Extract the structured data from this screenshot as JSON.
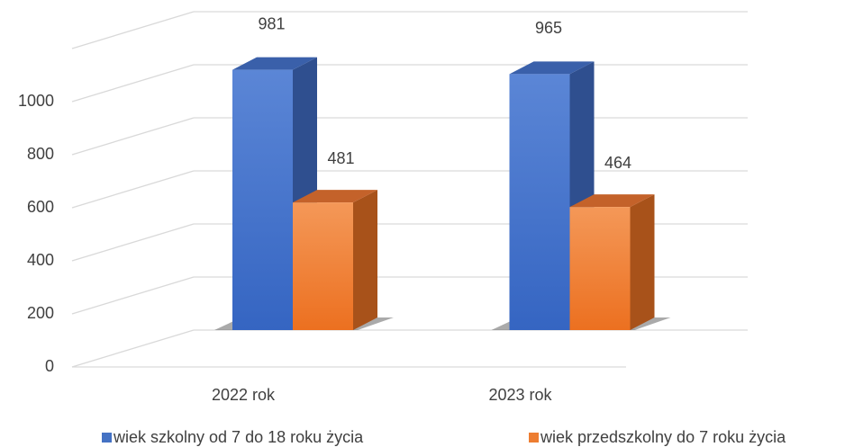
{
  "chart_data": {
    "type": "bar3d",
    "categories": [
      "2022 rok",
      "2023 rok"
    ],
    "series": [
      {
        "name": "wiek szkolny od 7 do 18 roku życia",
        "color": "#4472c4",
        "values": [
          981,
          965
        ]
      },
      {
        "name": "wiek przedszkolny do 7 roku życia",
        "color": "#ed7d31",
        "values": [
          481,
          464
        ]
      }
    ],
    "ylim": [
      0,
      1200
    ],
    "yticks": [
      0,
      200,
      400,
      600,
      800,
      1000
    ],
    "grid": true,
    "legend": "bottom"
  }
}
